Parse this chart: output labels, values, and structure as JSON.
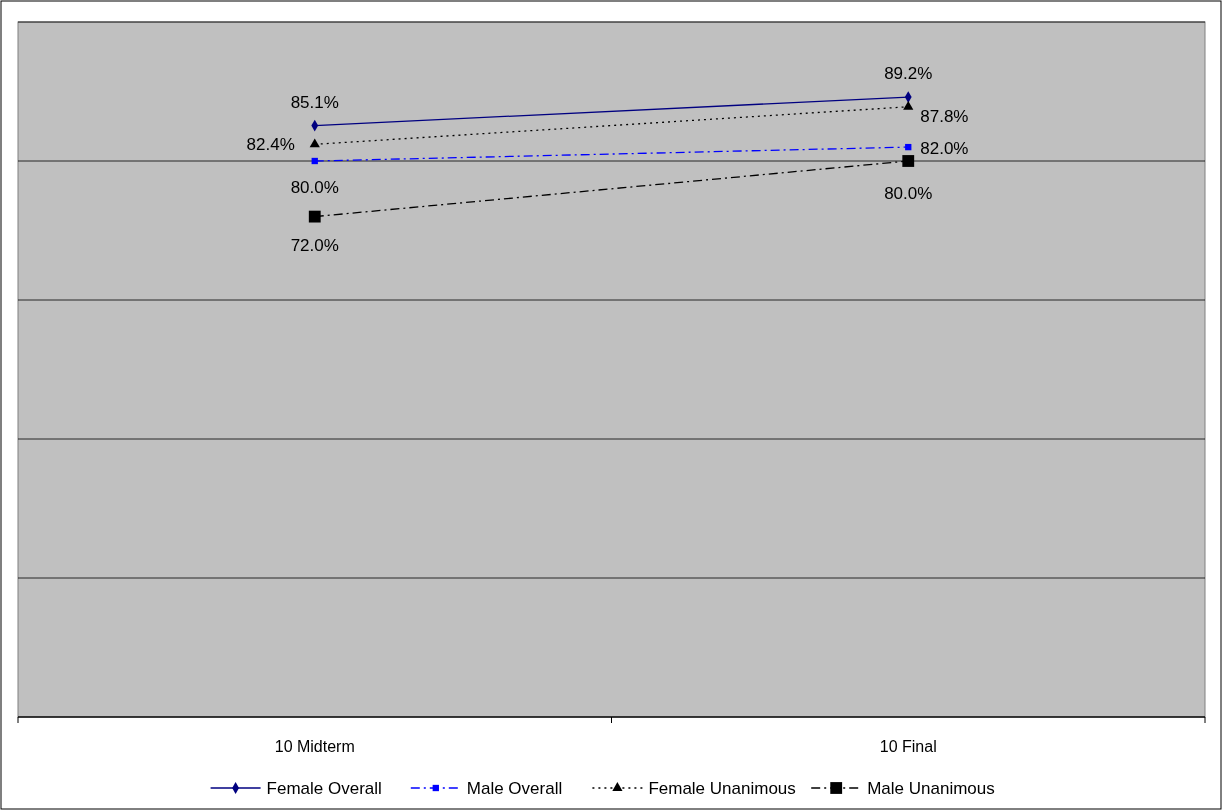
{
  "chart_data": {
    "type": "line",
    "categories": [
      "10 Midterm",
      "10 Final"
    ],
    "series": [
      {
        "name": "Female Overall",
        "color": "#000080",
        "values": [
          85.1,
          89.2
        ],
        "value_labels": [
          "85.1%",
          "89.2%"
        ],
        "marker": "diamond",
        "line_style": "solid"
      },
      {
        "name": "Male Overall",
        "color": "#0000ff",
        "values": [
          80.0,
          82.0
        ],
        "value_labels": [
          "80.0%",
          "82.0%"
        ],
        "marker": "square",
        "line_style": "dashed"
      },
      {
        "name": "Female Unanimous",
        "color": "#000000",
        "values": [
          82.4,
          87.8
        ],
        "value_labels": [
          "82.4%",
          "87.8%"
        ],
        "marker": "triangle",
        "line_style": "dotted"
      },
      {
        "name": "Male Unanimous",
        "color": "#000000",
        "values": [
          72.0,
          80.0
        ],
        "value_labels": [
          "72.0%",
          "80.0%"
        ],
        "marker": "square",
        "line_style": "dashed"
      }
    ],
    "ylim": [
      0,
      100
    ],
    "yticks": [
      {
        "value": 0,
        "label": null
      },
      {
        "value": 20,
        "label": null
      },
      {
        "value": 40,
        "label": null
      },
      {
        "value": 60,
        "label": null
      },
      {
        "value": 80,
        "label": null
      },
      {
        "value": 100,
        "label": null
      }
    ],
    "tick_labels": "x",
    "grid": "y",
    "legend": "bottom"
  }
}
